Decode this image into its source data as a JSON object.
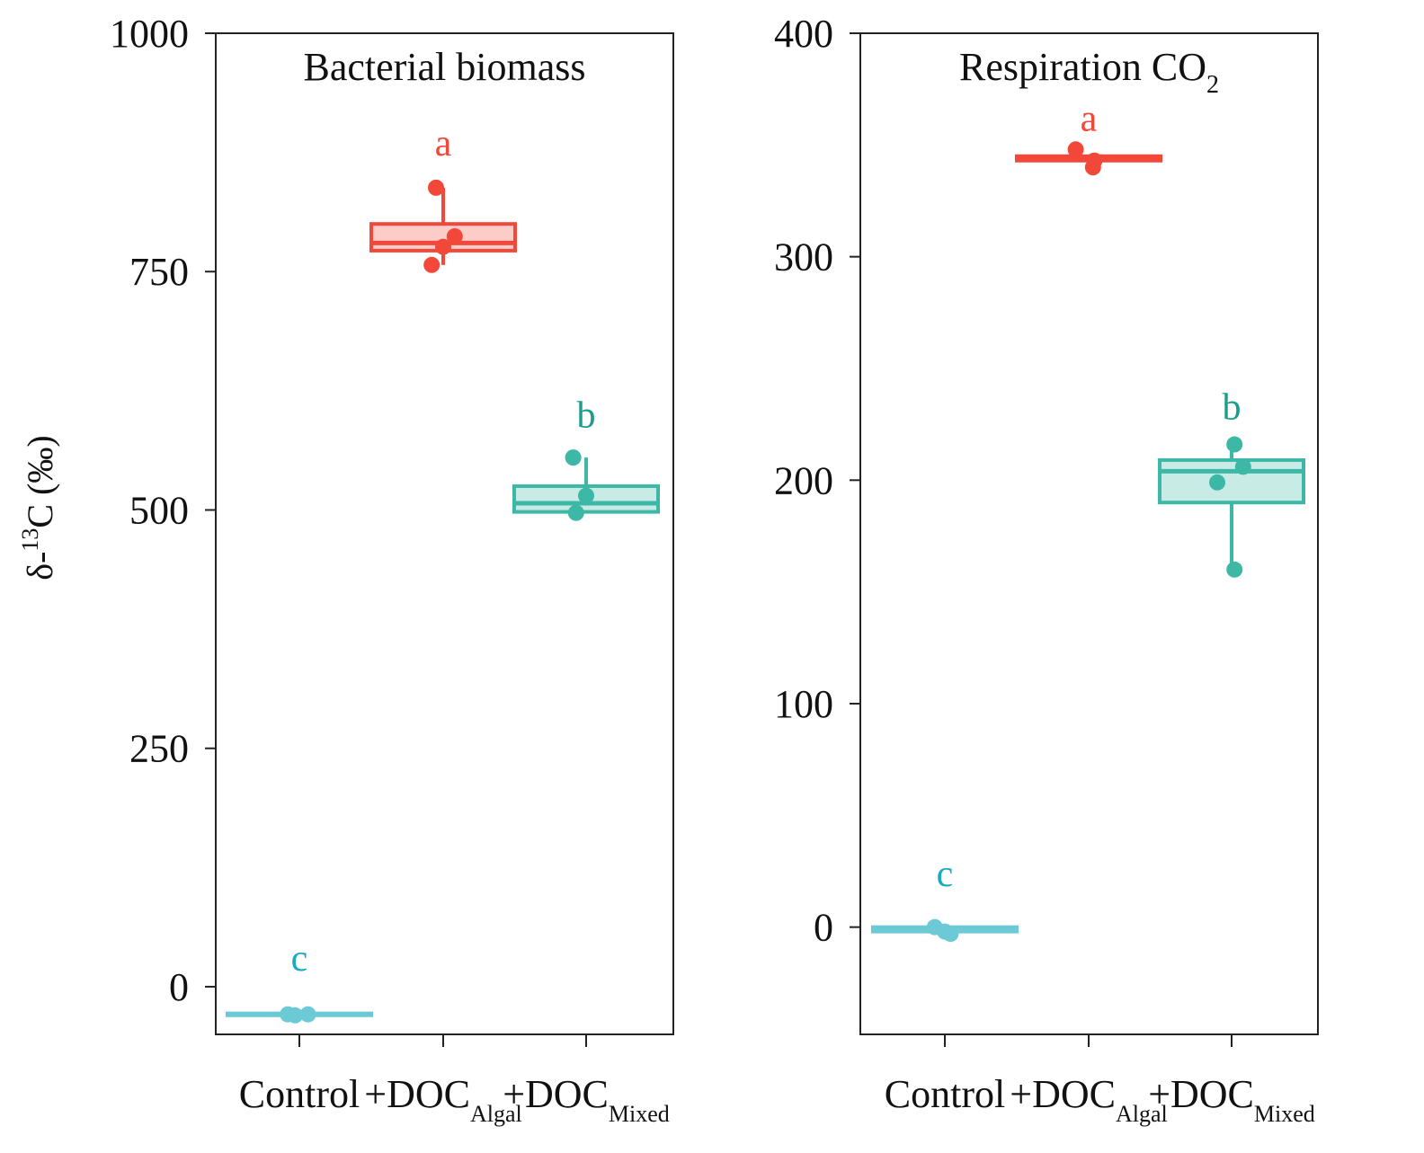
{
  "ylabel": "δ-13C (‰)",
  "ylabel_parts": {
    "symbol": "δ-",
    "superscript": "13",
    "rest": "C (‰)"
  },
  "colors": {
    "Control": "#6ccad6",
    "+DOC_Algal": "#f2483a",
    "+DOC_Mixed": "#3db8a6",
    "letter_Control": "#19a9c2",
    "letter_Algal": "#f2483a",
    "letter_Mixed": "#1a9e8a",
    "axis": "#222222"
  },
  "chart_data": [
    {
      "type": "box",
      "title": "Bacterial biomass",
      "title_main": "Bacterial biomass",
      "title_sub": "",
      "ylim": [
        -50,
        1000
      ],
      "yticks": [
        0,
        250,
        500,
        750,
        1000
      ],
      "ytick_labels": [
        "0",
        "250",
        "500",
        "750",
        "1000"
      ],
      "categories": [
        {
          "key": "Control",
          "label": "Control",
          "sub": ""
        },
        {
          "key": "+DOC_Algal",
          "label": "+DOC",
          "sub": "Algal"
        },
        {
          "key": "+DOC_Mixed",
          "label": "+DOC",
          "sub": "Mixed"
        }
      ],
      "groups": [
        {
          "category": "Control",
          "letter": "c",
          "letter_y": 30,
          "box": {
            "q1": -30,
            "median": -29,
            "q3": -28,
            "whisker_low": -30,
            "whisker_high": -28
          },
          "points": [
            {
              "xoff": -0.08,
              "y": -29
            },
            {
              "xoff": -0.03,
              "y": -30
            },
            {
              "xoff": 0.06,
              "y": -29
            }
          ]
        },
        {
          "category": "+DOC_Algal",
          "letter": "a",
          "letter_y": 885,
          "box": {
            "q1": 772,
            "median": 780,
            "q3": 800,
            "whisker_low": 757,
            "whisker_high": 838
          },
          "points": [
            {
              "xoff": -0.05,
              "y": 838
            },
            {
              "xoff": 0.08,
              "y": 787
            },
            {
              "xoff": 0.0,
              "y": 776
            },
            {
              "xoff": -0.08,
              "y": 757
            }
          ]
        },
        {
          "category": "+DOC_Mixed",
          "letter": "b",
          "letter_y": 600,
          "box": {
            "q1": 498,
            "median": 507,
            "q3": 525,
            "whisker_low": 498,
            "whisker_high": 555
          },
          "points": [
            {
              "xoff": -0.09,
              "y": 555
            },
            {
              "xoff": 0.0,
              "y": 515
            },
            {
              "xoff": -0.07,
              "y": 497
            }
          ]
        }
      ]
    },
    {
      "type": "box",
      "title": "Respiration CO2",
      "title_main": "Respiration CO",
      "title_sub": "2",
      "ylim": [
        -48,
        400
      ],
      "yticks": [
        0,
        100,
        200,
        300,
        400
      ],
      "ytick_labels": [
        "0",
        "100",
        "200",
        "300",
        "400"
      ],
      "categories": [
        {
          "key": "Control",
          "label": "Control",
          "sub": ""
        },
        {
          "key": "+DOC_Algal",
          "label": "+DOC",
          "sub": "Algal"
        },
        {
          "key": "+DOC_Mixed",
          "label": "+DOC",
          "sub": "Mixed"
        }
      ],
      "groups": [
        {
          "category": "Control",
          "letter": "c",
          "letter_y": 24,
          "box": {
            "q1": -2,
            "median": -1,
            "q3": 0,
            "whisker_low": -2,
            "whisker_high": 0
          },
          "points": [
            {
              "xoff": -0.07,
              "y": 0
            },
            {
              "xoff": 0.0,
              "y": -2
            },
            {
              "xoff": 0.04,
              "y": -3
            }
          ]
        },
        {
          "category": "+DOC_Algal",
          "letter": "a",
          "letter_y": 362,
          "box": {
            "q1": 343,
            "median": 344,
            "q3": 345,
            "whisker_low": 343,
            "whisker_high": 345
          },
          "points": [
            {
              "xoff": -0.09,
              "y": 348
            },
            {
              "xoff": 0.04,
              "y": 343
            },
            {
              "xoff": 0.03,
              "y": 340
            }
          ]
        },
        {
          "category": "+DOC_Mixed",
          "letter": "b",
          "letter_y": 233,
          "box": {
            "q1": 190,
            "median": 204,
            "q3": 209,
            "whisker_low": 160,
            "whisker_high": 216
          },
          "points": [
            {
              "xoff": 0.02,
              "y": 216
            },
            {
              "xoff": 0.08,
              "y": 206
            },
            {
              "xoff": -0.1,
              "y": 199
            },
            {
              "xoff": 0.02,
              "y": 160
            }
          ]
        }
      ]
    }
  ]
}
